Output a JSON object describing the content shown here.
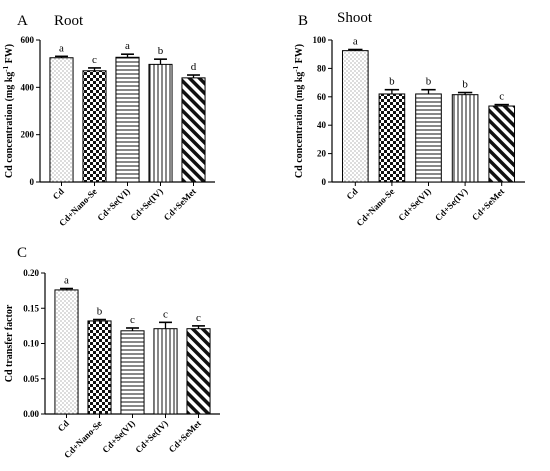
{
  "figure": {
    "series_styles": [
      {
        "pattern": "dots"
      },
      {
        "pattern": "checker"
      },
      {
        "pattern": "hlines"
      },
      {
        "pattern": "vlines"
      },
      {
        "pattern": "diag"
      }
    ]
  },
  "chart_data": [
    {
      "type": "bar",
      "panel": "A",
      "title": "Root",
      "ylabel": "Cd concentration (mg kg-1 FW)",
      "ylabel_parts": {
        "pre": "Cd concentration (mg kg",
        "sup": "-1",
        "post": " FW)"
      },
      "ylim": [
        0,
        600
      ],
      "yticks": [
        0,
        200,
        400,
        600
      ],
      "categories": [
        "Cd",
        "Cd+Nano-Se",
        "Cd+Se(VI)",
        "Cd+Se(IV)",
        "Cd+SeMet"
      ],
      "values": [
        525,
        470,
        527,
        497,
        440
      ],
      "errors": [
        6,
        12,
        13,
        22,
        12
      ],
      "letters": [
        "a",
        "c",
        "a",
        "b",
        "d"
      ]
    },
    {
      "type": "bar",
      "panel": "B",
      "title": "Shoot",
      "ylabel": "Cd concentration (mg kg-1 FW)",
      "ylabel_parts": {
        "pre": "Cd concentration (mg kg",
        "sup": "-1",
        "post": " FW)"
      },
      "ylim": [
        0,
        100
      ],
      "yticks": [
        0,
        20,
        40,
        60,
        80,
        100
      ],
      "categories": [
        "Cd",
        "Cd+Nano-Se",
        "Cd+Se(VI)",
        "Cd+Se(IV)",
        "Cd+SeMet"
      ],
      "values": [
        92.5,
        62,
        62,
        61.5,
        53.5
      ],
      "errors": [
        0.8,
        3,
        3,
        1.5,
        1
      ],
      "letters": [
        "a",
        "b",
        "b",
        "b",
        "c"
      ]
    },
    {
      "type": "bar",
      "panel": "C",
      "title": "",
      "ylabel": "Cd transfer factor",
      "ylabel_parts": {
        "pre": "Cd transfer factor",
        "sup": "",
        "post": ""
      },
      "ylim": [
        0,
        0.2
      ],
      "yticks": [
        "0.00",
        "0.05",
        "0.10",
        "0.15",
        "0.20"
      ],
      "categories": [
        "Cd",
        "Cd+Nano-Se",
        "Cd+Se(VI)",
        "Cd+Se(IV)",
        "Cd+SeMet"
      ],
      "values": [
        0.176,
        0.132,
        0.118,
        0.121,
        0.121
      ],
      "errors": [
        0.002,
        0.002,
        0.004,
        0.009,
        0.004
      ],
      "letters": [
        "a",
        "b",
        "c",
        "c",
        "c"
      ]
    }
  ]
}
